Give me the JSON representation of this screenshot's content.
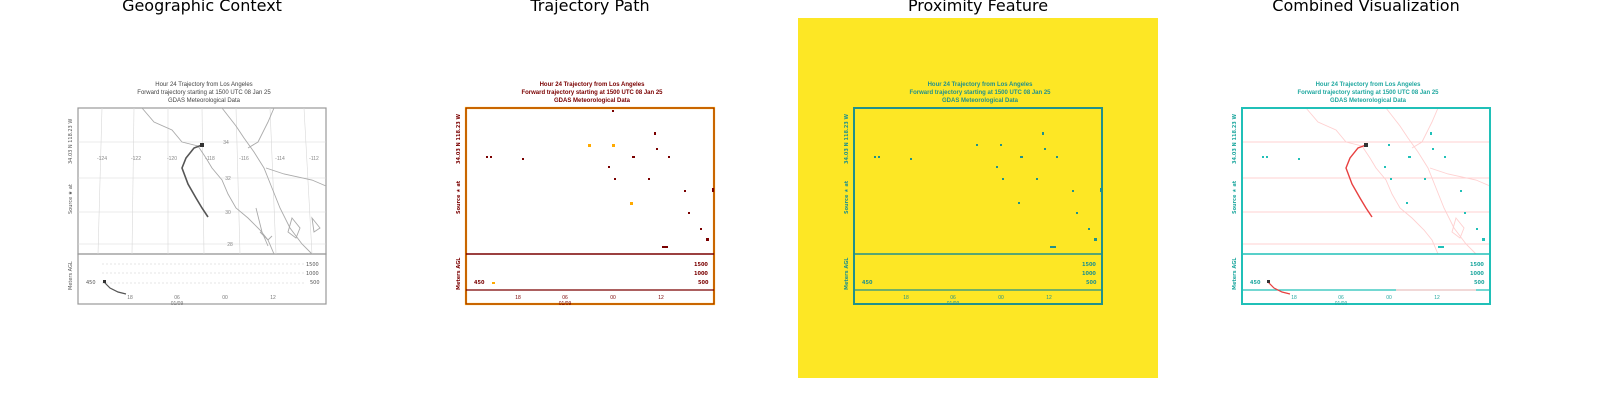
{
  "panels": [
    {
      "title": "Geographic Context"
    },
    {
      "title": "Trajectory Path"
    },
    {
      "title": "Proximity Feature"
    },
    {
      "title": "Combined Visualization"
    }
  ],
  "map": {
    "title_line1": "Hour 24 Trajectory from Los Angeles",
    "title_line2": "Forward trajectory starting at 1500 UTC 08 Jan 25",
    "title_line3": "GDAS Meteorological Data",
    "source_label": "Source ★ at",
    "source_coords": "34.03 N 118.23 W",
    "lon_labels": [
      "-124",
      "-122",
      "-120",
      "-118",
      "-116",
      "-114",
      "-112"
    ],
    "lat_labels": [
      "34",
      "32",
      "30",
      "28"
    ],
    "height_axis_label": "Meters AGL",
    "height_ticks": [
      "1500",
      "1000",
      "500"
    ],
    "height_start": "450",
    "time_ticks": [
      "18",
      "06",
      "00",
      "12"
    ],
    "date_label": "01/09"
  },
  "colors": {
    "context_line": "#999999",
    "trajectory_dark": "#555555",
    "edge_dark": "#7a0000",
    "edge_orange": "#ffaa00",
    "proximity_bg": "#fde725",
    "proximity_fg": "#21918c",
    "combined_teal": "#20c0b8",
    "combined_red": "#e84040",
    "combined_pink": "#ffd0d0"
  }
}
